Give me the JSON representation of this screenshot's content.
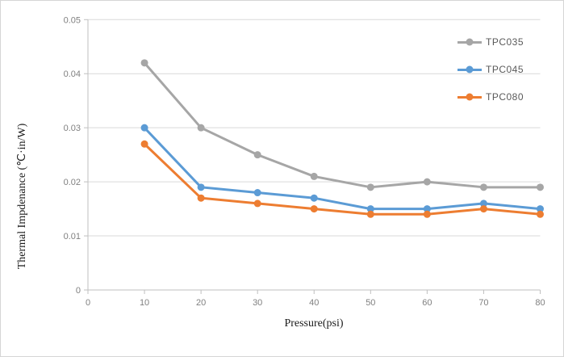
{
  "chart_data": {
    "type": "line",
    "title": "",
    "xlabel": "Pressure(psi)",
    "ylabel": "Thermal Impdenance (℃·in/W)",
    "x": [
      10,
      20,
      30,
      40,
      50,
      60,
      70,
      80
    ],
    "series": [
      {
        "name": "TPC035",
        "color": "#a6a6a6",
        "values": [
          0.042,
          0.03,
          0.025,
          0.021,
          0.019,
          0.02,
          0.019,
          0.019
        ]
      },
      {
        "name": "TPC045",
        "color": "#5b9bd5",
        "values": [
          0.03,
          0.019,
          0.018,
          0.017,
          0.015,
          0.015,
          0.016,
          0.015
        ]
      },
      {
        "name": "TPC080",
        "color": "#ed7d31",
        "values": [
          0.027,
          0.017,
          0.016,
          0.015,
          0.014,
          0.014,
          0.015,
          0.014
        ]
      }
    ],
    "xlim": [
      0,
      80
    ],
    "ylim": [
      0,
      0.05
    ],
    "x_ticks": [
      0,
      10,
      20,
      30,
      40,
      50,
      60,
      70,
      80
    ],
    "x_tick_labels": [
      "0",
      "10",
      "20",
      "30",
      "40",
      "50",
      "60",
      "70",
      "80"
    ],
    "y_ticks": [
      0,
      0.01,
      0.02,
      0.03,
      0.04,
      0.05
    ],
    "y_tick_labels": [
      "0",
      "0.01",
      "0.02",
      "0.03",
      "0.04",
      "0.05"
    ],
    "grid": "horizontal",
    "legend_position": "top-right",
    "legend_entries": [
      "TPC035",
      "TPC045",
      "TPC080"
    ],
    "colors": {
      "gridline": "#d9d9d9",
      "axis_line": "#bfbfbf",
      "tick_label": "#808080",
      "axis_title": "#1a1a1a",
      "legend_text": "#595959"
    }
  }
}
